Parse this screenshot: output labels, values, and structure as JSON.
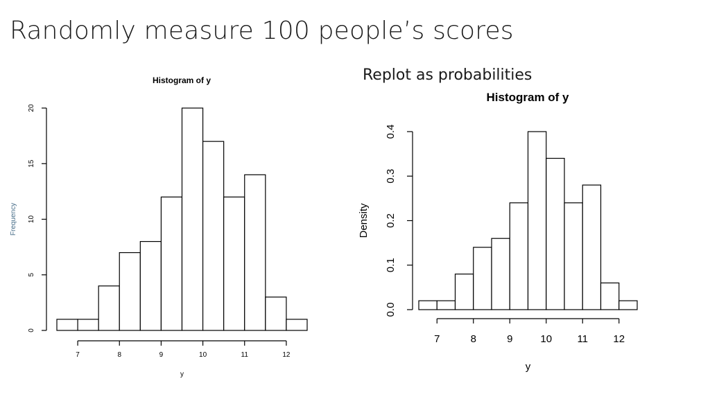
{
  "slide": {
    "title": "Randomly measure 100 people’s scores",
    "subtitle": "Replot as probabilities"
  },
  "chart_data": [
    {
      "type": "bar",
      "title": "Histogram of y",
      "xlabel": "y",
      "ylabel": "Frequency",
      "bin_edges": [
        6.5,
        7,
        7.5,
        8,
        8.5,
        9,
        9.5,
        10,
        10.5,
        11,
        11.5,
        12,
        12.5
      ],
      "values": [
        1,
        1,
        4,
        7,
        8,
        12,
        20,
        17,
        12,
        14,
        3,
        1
      ],
      "xticks": [
        7,
        8,
        9,
        10,
        11,
        12
      ],
      "yticks": [
        0,
        5,
        10,
        15,
        20
      ],
      "xlim": [
        6.5,
        12.5
      ],
      "ylim": [
        0,
        20
      ],
      "grid": false,
      "colors": {
        "bar_fill": "#ffffff",
        "bar_stroke": "#000000",
        "ylabel": "#4a6f8a"
      }
    },
    {
      "type": "bar",
      "title": "Histogram of y",
      "xlabel": "y",
      "ylabel": "Density",
      "bin_edges": [
        6.5,
        7,
        7.5,
        8,
        8.5,
        9,
        9.5,
        10,
        10.5,
        11,
        11.5,
        12,
        12.5
      ],
      "values": [
        0.02,
        0.02,
        0.08,
        0.14,
        0.16,
        0.24,
        0.4,
        0.34,
        0.24,
        0.28,
        0.06,
        0.02
      ],
      "xticks": [
        7,
        8,
        9,
        10,
        11,
        12
      ],
      "yticks": [
        "0.0",
        "0.1",
        "0.2",
        "0.3",
        "0.4"
      ],
      "xlim": [
        6.5,
        12.5
      ],
      "ylim": [
        0,
        0.4
      ],
      "grid": false,
      "colors": {
        "bar_fill": "#ffffff",
        "bar_stroke": "#000000",
        "ylabel": "#000000"
      }
    }
  ]
}
